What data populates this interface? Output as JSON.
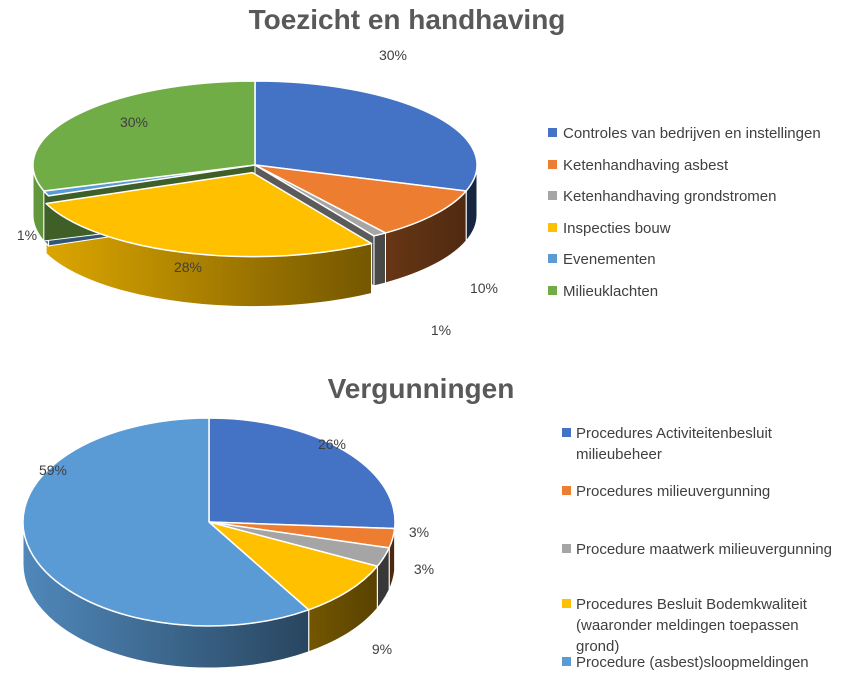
{
  "chart_data": [
    {
      "type": "pie",
      "title": "Toezicht en handhaving",
      "legend_position": "right",
      "series": [
        {
          "name": "Controles van bedrijven en instellingen",
          "value": 30,
          "label": "30%",
          "color": "#4472C4"
        },
        {
          "name": "Ketenhandhaving asbest",
          "value": 10,
          "label": "10%",
          "color": "#ED7D31"
        },
        {
          "name": "Ketenhandhaving grondstromen",
          "value": 1,
          "label": "1%",
          "color": "#A5A5A5"
        },
        {
          "name": "Inspecties bouw",
          "value": 28,
          "label": "28%",
          "color": "#FFC000"
        },
        {
          "name": "Evenementen",
          "value": 1,
          "label": "1%",
          "color": "#5B9BD5"
        },
        {
          "name": "Milieuklachten",
          "value": 30,
          "label": "30%",
          "color": "#70AD47"
        }
      ]
    },
    {
      "type": "pie",
      "title": "Vergunningen",
      "legend_position": "right",
      "series": [
        {
          "name": "Procedures Activiteitenbesluit milieubeheer",
          "value": 26,
          "label": "26%",
          "color": "#4472C4"
        },
        {
          "name": "Procedures milieuvergunning",
          "value": 3,
          "label": "3%",
          "color": "#ED7D31"
        },
        {
          "name": "Procedure maatwerk milieuvergunning",
          "value": 3,
          "label": "3%",
          "color": "#A5A5A5"
        },
        {
          "name": "Procedures Besluit Bodemkwaliteit (waaronder meldingen toepassen grond)",
          "value": 9,
          "label": "9%",
          "color": "#FFC000"
        },
        {
          "name": "Procedure (asbest)sloopmeldingen",
          "value": 59,
          "label": "59%",
          "color": "#5B9BD5"
        }
      ]
    }
  ]
}
